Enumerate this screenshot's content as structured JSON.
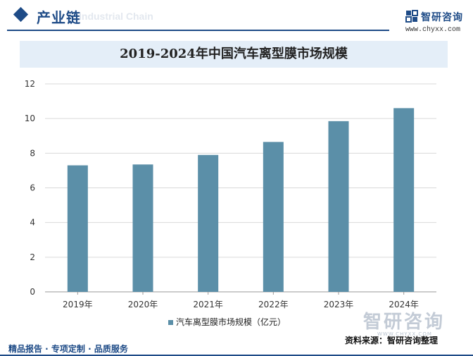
{
  "header": {
    "section_title": "产业链",
    "section_subtitle": "Industrial Chain",
    "brand_name": "智研咨询",
    "brand_url": "www.chyxx.com"
  },
  "colors": {
    "accent": "#1e4b87",
    "bar": "#5b8fa8",
    "title_band": "#e4eef8"
  },
  "chart_data": {
    "type": "bar",
    "title": "2019-2024年中国汽车离型膜市场规模",
    "categories": [
      "2019年",
      "2020年",
      "2021年",
      "2022年",
      "2023年",
      "2024年"
    ],
    "series": [
      {
        "name": "汽车离型膜市场规模（亿元）",
        "values": [
          7.3,
          7.35,
          7.9,
          8.65,
          9.85,
          10.6
        ]
      }
    ],
    "ylim": [
      0,
      12
    ],
    "yticks": [
      0,
      2,
      4,
      6,
      8,
      10,
      12
    ],
    "grid": true,
    "legend": "bottom"
  },
  "footer": {
    "left": "精品报告 · 专项定制 · 品质服务",
    "right": "资料来源：智研咨询整理"
  },
  "watermark": {
    "name": "智研咨询",
    "en": "WWW.CHYXX.COM"
  }
}
